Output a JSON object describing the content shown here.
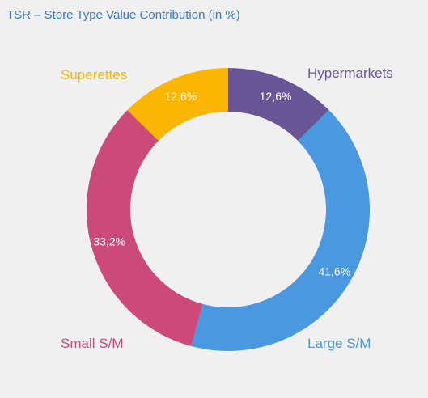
{
  "chart_data": {
    "type": "pie",
    "title": "TSR – Store Type Value Contribution (in %)",
    "donut": true,
    "legend": "none",
    "slices": [
      {
        "name": "Hypermarkets",
        "value": 12.6,
        "label": "12,6%",
        "color": "#6a5697"
      },
      {
        "name": "Large S/M",
        "value": 41.6,
        "label": "41,6%",
        "color": "#4a98df"
      },
      {
        "name": "Small S/M",
        "value": 33.2,
        "label": "33,2%",
        "color": "#cc4a7a"
      },
      {
        "name": "Superettes",
        "value": 12.6,
        "label": "12,6%",
        "color": "#fbb604"
      }
    ]
  }
}
